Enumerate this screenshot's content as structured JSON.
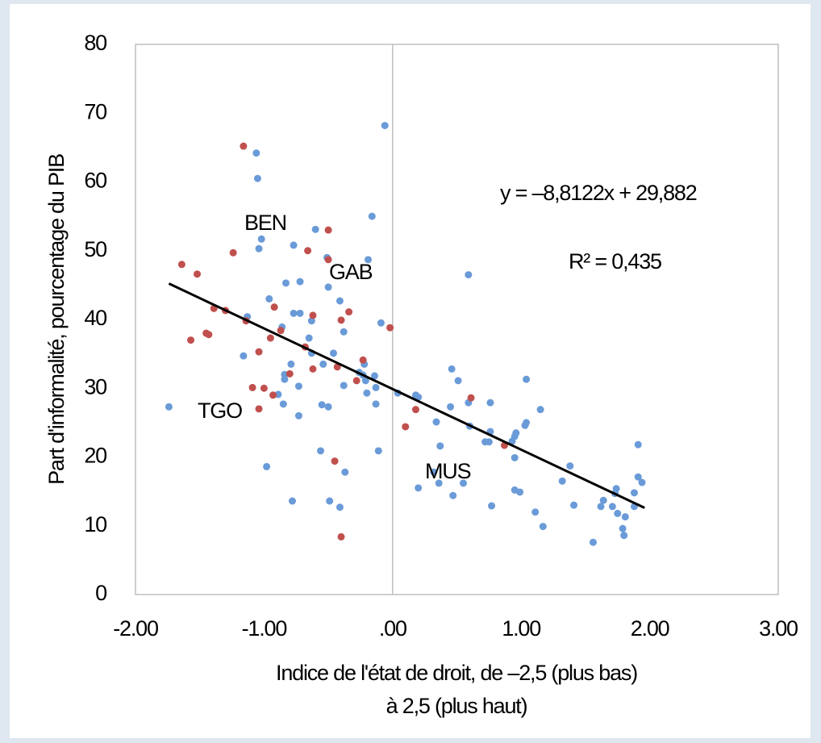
{
  "chart_data": {
    "type": "scatter",
    "ylabel": "Part d'informalité,  pourcentage du PIB",
    "xlabel": [
      "Indice de l'état de droit, de –2,5 (plus bas)",
      "à 2,5 (plus haut)"
    ],
    "xlim": [
      -2,
      3
    ],
    "xticks": [
      {
        "value": -2,
        "label": "-2.00"
      },
      {
        "value": -1,
        "label": "-1.00"
      },
      {
        "value": 0,
        "label": ".00"
      },
      {
        "value": 1,
        "label": "1.00"
      },
      {
        "value": 2,
        "label": "2.00"
      },
      {
        "value": 3,
        "label": "3.00"
      }
    ],
    "ylim": [
      0,
      80
    ],
    "yticks": [
      0,
      10,
      20,
      30,
      40,
      50,
      60,
      70,
      80
    ],
    "series": [
      {
        "color": "#6a9bd8",
        "x": [
          -1.74,
          -1.16,
          -1.13,
          -1.06,
          -1.05,
          -1.04,
          -1.02,
          -0.98,
          -0.96,
          -0.89,
          -0.86,
          -0.85,
          -0.83,
          -0.84,
          -0.84,
          -0.79,
          -0.78,
          -0.77,
          -0.77,
          -0.73,
          -0.73,
          -0.72,
          -0.72,
          -0.65,
          -0.63,
          -0.63,
          -0.6,
          -0.56,
          -0.55,
          -0.54,
          -0.51,
          -0.5,
          -0.5,
          -0.49,
          -0.46,
          -0.41,
          -0.41,
          -0.38,
          -0.38,
          -0.37,
          -0.26,
          -0.23,
          -0.22,
          -0.21,
          -0.2,
          -0.19,
          -0.16,
          -0.14,
          -0.13,
          -0.13,
          -0.11,
          -0.09,
          -0.06,
          0.04,
          0.18,
          0.2,
          0.2,
          0.34,
          0.32,
          0.36,
          0.37,
          0.45,
          0.46,
          0.47,
          0.51,
          0.55,
          0.59,
          0.6,
          0.59,
          0.76,
          0.77,
          0.72,
          0.75,
          0.76,
          0.93,
          0.95,
          0.96,
          0.95,
          0.95,
          0.99,
          1.03,
          1.04,
          1.04,
          1.15,
          1.11,
          1.17,
          1.32,
          1.38,
          1.41,
          1.56,
          1.62,
          1.64,
          1.71,
          1.73,
          1.74,
          1.75,
          1.79,
          1.8,
          1.81,
          1.88,
          1.88,
          1.91,
          1.91,
          1.94
        ],
        "values": [
          27.3,
          34.7,
          40.4,
          64.2,
          60.5,
          50.3,
          51.7,
          18.6,
          43.0,
          29.1,
          38.9,
          27.7,
          45.3,
          31.3,
          32.0,
          33.5,
          13.6,
          50.8,
          40.9,
          30.3,
          26.0,
          45.5,
          40.9,
          37.3,
          39.8,
          35.1,
          53.1,
          20.9,
          27.6,
          33.5,
          49.0,
          44.7,
          27.3,
          13.6,
          35.1,
          12.7,
          42.7,
          38.2,
          30.4,
          17.8,
          32.3,
          31.9,
          33.5,
          31.1,
          29.3,
          48.7,
          55.0,
          31.8,
          27.7,
          30.1,
          20.9,
          39.5,
          68.2,
          29.3,
          29.0,
          28.7,
          15.5,
          25.1,
          17.8,
          16.2,
          21.6,
          27.3,
          32.8,
          14.4,
          31.1,
          16.2,
          27.9,
          24.5,
          46.5,
          27.9,
          12.9,
          22.2,
          22.2,
          23.7,
          22.3,
          23.0,
          23.5,
          19.9,
          15.2,
          14.9,
          24.6,
          25.0,
          31.3,
          26.9,
          12.0,
          9.9,
          16.5,
          18.7,
          13.0,
          7.6,
          12.8,
          13.7,
          12.8,
          14.7,
          15.4,
          11.8,
          9.6,
          8.6,
          11.3,
          12.8,
          14.8,
          21.8,
          17.1,
          16.3
        ]
      },
      {
        "color": "#c0504d",
        "x": [
          -1.16,
          -1.24,
          -1.64,
          -1.52,
          -1.57,
          -1.45,
          -1.43,
          -1.39,
          -1.3,
          -1.14,
          -1.09,
          -1.04,
          -1.04,
          -1.0,
          -0.95,
          -0.92,
          -0.93,
          -0.87,
          -0.8,
          -0.66,
          -0.68,
          -0.62,
          -0.62,
          -0.5,
          -0.5,
          -0.45,
          -0.43,
          -0.4,
          -0.4,
          -0.34,
          -0.28,
          -0.23,
          -0.02,
          0.1,
          0.18,
          0.61,
          0.87
        ],
        "values": [
          65.2,
          49.7,
          48.0,
          46.6,
          37.0,
          38.0,
          37.8,
          41.6,
          41.3,
          39.8,
          30.1,
          27.0,
          35.3,
          30.0,
          37.3,
          41.8,
          29.0,
          38.4,
          32.1,
          50.0,
          36.0,
          32.8,
          40.6,
          53.0,
          48.7,
          19.4,
          33.1,
          39.9,
          8.4,
          41.1,
          31.1,
          34.1,
          38.8,
          24.4,
          26.9,
          28.6,
          21.7
        ]
      }
    ],
    "trendline": {
      "slope": -8.8122,
      "intercept": 29.882,
      "x_start": -1.74,
      "x_end": 1.96,
      "color": "#000000",
      "label": "y = –8,8122x + 29,882",
      "r2_label": "R² = 0,435"
    },
    "annotations": [
      "BEN",
      "GAB",
      "TGO",
      "MUS"
    ]
  }
}
